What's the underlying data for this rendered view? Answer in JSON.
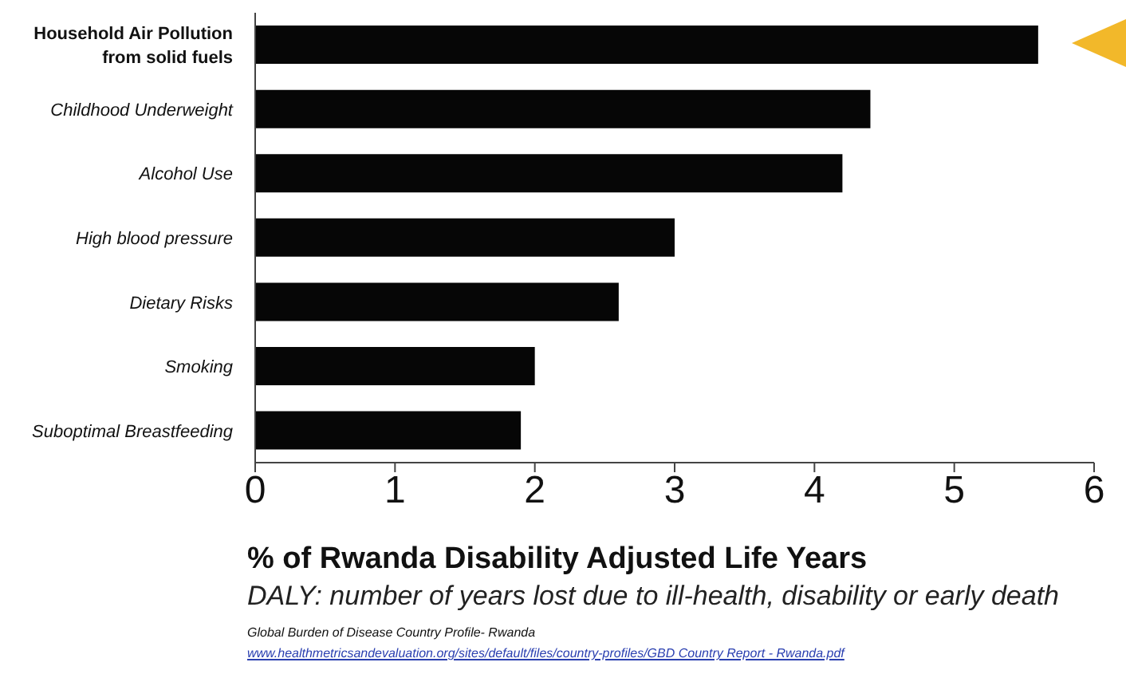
{
  "chart_data": {
    "type": "bar",
    "orientation": "horizontal",
    "categories": [
      "Household Air Pollution from solid fuels",
      "Childhood Underweight",
      "Alcohol Use",
      "High blood pressure",
      "Dietary Risks",
      "Smoking",
      "Suboptimal Breastfeeding"
    ],
    "values": [
      5.6,
      4.4,
      4.2,
      3.0,
      2.6,
      2.0,
      1.9
    ],
    "color": "#060606",
    "xlim": [
      0,
      6
    ],
    "xticks": [
      0,
      1,
      2,
      3,
      4,
      5,
      6
    ],
    "xlabel": "% of Rwanda Disability Adjusted Life Years",
    "annotations": [
      "DALY: number of years lost due to ill-health, disability or early death",
      "Global Burden of Disease Country Profile- Rwanda",
      "www.healthmetricsandevaluation.org/sites/default/files/country-profiles/GBD Country Report - Rwanda.pdf"
    ],
    "grid": false,
    "legend": false
  }
}
